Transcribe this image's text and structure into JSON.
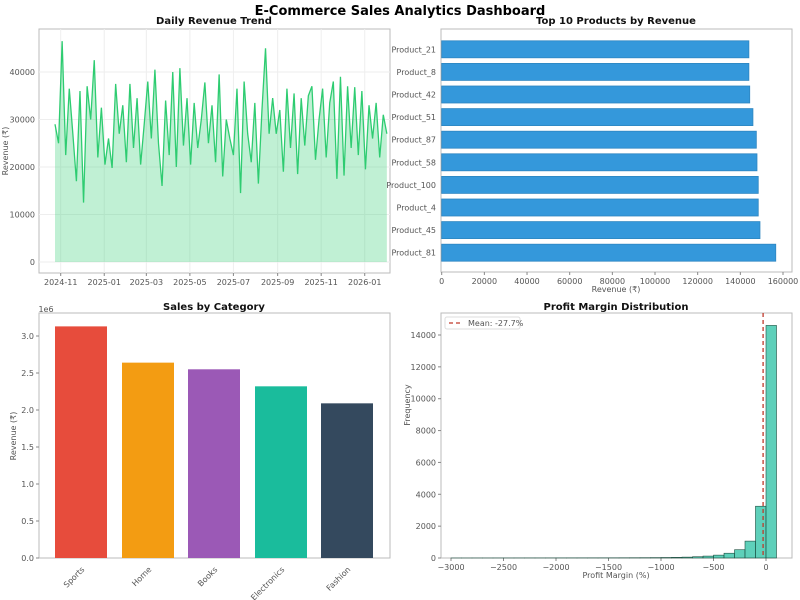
{
  "title": "E-Commerce Sales Analytics Dashboard",
  "chart_data": [
    {
      "type": "line",
      "title": "Daily Revenue Trend",
      "xlabel": "",
      "ylabel": "Revenue (₹)",
      "x_start": "2024-10-24",
      "x_end": "2026-01-14",
      "sample_every_days": 5,
      "xticks": [
        "2024-11",
        "2025-01",
        "2025-03",
        "2025-05",
        "2025-07",
        "2025-09",
        "2025-11",
        "2026-01"
      ],
      "yticks": [
        0,
        10000,
        20000,
        30000,
        40000
      ],
      "ylim": [
        -1500,
        48000
      ],
      "grid": true,
      "color": "#2ecc71",
      "values": [
        29000,
        25000,
        46500,
        22500,
        36500,
        27000,
        17000,
        36000,
        12500,
        37000,
        30000,
        42500,
        22000,
        32500,
        20500,
        26000,
        19800,
        37500,
        27000,
        33000,
        21000,
        37500,
        24000,
        34500,
        20500,
        29000,
        38000,
        26000,
        40500,
        25000,
        16000,
        34000,
        22500,
        40000,
        20000,
        40800,
        24500,
        34500,
        20500,
        33500,
        24000,
        30000,
        37800,
        25000,
        33000,
        21000,
        39500,
        18000,
        30000,
        26000,
        22500,
        36500,
        14500,
        38000,
        27000,
        21000,
        33500,
        16500,
        32000,
        45000,
        27000,
        34500,
        27000,
        32000,
        19000,
        36500,
        24000,
        35500,
        18500,
        34500,
        24500,
        35000,
        37000,
        21500,
        30000,
        36500,
        22000,
        33500,
        38000,
        17500,
        39000,
        18200,
        37000,
        24000,
        36800,
        22500,
        36000,
        19500,
        33000,
        26000,
        33500,
        22000,
        31000,
        27000
      ],
      "fill_opacity": 0.3
    },
    {
      "type": "bar",
      "orientation": "horizontal",
      "title": "Top 10 Products by Revenue",
      "xlabel": "Revenue (₹)",
      "ylabel": "",
      "categories": [
        "Product_21",
        "Product_8",
        "Product_42",
        "Product_51",
        "Product_87",
        "Product_58",
        "Product_100",
        "Product_4",
        "Product_45",
        "Product_81"
      ],
      "values": [
        144000,
        144000,
        144400,
        145900,
        147500,
        147800,
        148400,
        148400,
        149200,
        156600
      ],
      "xticks": [
        0,
        20000,
        40000,
        60000,
        80000,
        100000,
        120000,
        140000,
        160000
      ],
      "xlim": [
        0,
        160000
      ],
      "color": "#3498db"
    },
    {
      "type": "bar",
      "title": "Sales by Category",
      "xlabel": "",
      "ylabel": "Revenue (₹)",
      "scale_label": "1e6",
      "categories": [
        "Sports",
        "Home",
        "Books",
        "Electronics",
        "Fashion"
      ],
      "values": [
        3130000,
        2640000,
        2550000,
        2320000,
        2090000
      ],
      "yticks": [
        "0.0",
        "0.5",
        "1.0",
        "1.5",
        "2.0",
        "2.5",
        "3.0"
      ],
      "ylim": [
        0,
        3300000
      ],
      "colors": [
        "#e74c3c",
        "#f39c12",
        "#9b59b6",
        "#1abc9c",
        "#34495e"
      ]
    },
    {
      "type": "histogram",
      "title": "Profit Margin Distribution",
      "xlabel": "Profit Margin (%)",
      "ylabel": "Frequency",
      "bin_width": 100,
      "bins": [
        [
          -3000,
          2
        ],
        [
          -2900,
          2
        ],
        [
          -2800,
          3
        ],
        [
          -2700,
          3
        ],
        [
          -2600,
          4
        ],
        [
          -2500,
          4
        ],
        [
          -2400,
          5
        ],
        [
          -2300,
          6
        ],
        [
          -2200,
          6
        ],
        [
          -2100,
          7
        ],
        [
          -2000,
          8
        ],
        [
          -1900,
          9
        ],
        [
          -1800,
          10
        ],
        [
          -1700,
          11
        ],
        [
          -1600,
          12
        ],
        [
          -1500,
          13
        ],
        [
          -1400,
          15
        ],
        [
          -1300,
          17
        ],
        [
          -1200,
          20
        ],
        [
          -1100,
          24
        ],
        [
          -1000,
          30
        ],
        [
          -900,
          40
        ],
        [
          -800,
          55
        ],
        [
          -700,
          80
        ],
        [
          -600,
          120
        ],
        [
          -500,
          180
        ],
        [
          -400,
          300
        ],
        [
          -300,
          520
        ],
        [
          -200,
          1060
        ],
        [
          -100,
          3250
        ],
        [
          0,
          14600
        ]
      ],
      "xticks": [
        -3000,
        -2500,
        -2000,
        -1500,
        -1000,
        -500,
        0
      ],
      "yticks": [
        0,
        2000,
        4000,
        6000,
        8000,
        10000,
        12000,
        14000
      ],
      "xlim": [
        -3150,
        400
      ],
      "ylim": [
        0,
        15400
      ],
      "mean": -27.7,
      "legend": "Mean: -27.7%",
      "legend_position": "top-left",
      "color": "#1abc9c"
    }
  ]
}
